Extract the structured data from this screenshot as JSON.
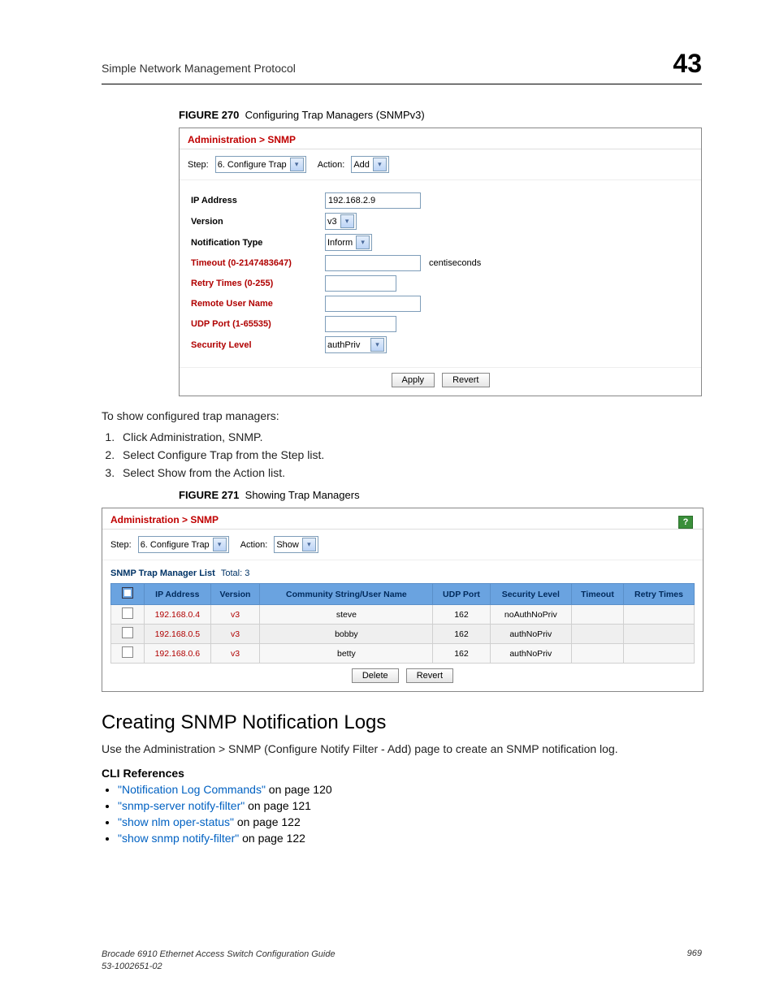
{
  "header": {
    "title": "Simple Network Management Protocol",
    "chapter": "43"
  },
  "figure270": {
    "label": "FIGURE 270",
    "caption": "Configuring Trap Managers (SNMPv3)",
    "breadcrumb": "Administration > SNMP",
    "step_label": "Step:",
    "step_value": "6. Configure Trap",
    "action_label": "Action:",
    "action_value": "Add",
    "rows": {
      "ip_label": "IP Address",
      "ip_value": "192.168.2.9",
      "version_label": "Version",
      "version_value": "v3",
      "notif_label": "Notification Type",
      "notif_value": "Inform",
      "timeout_label": "Timeout (0-2147483647)",
      "timeout_suffix": "centiseconds",
      "retry_label": "Retry Times (0-255)",
      "remote_label": "Remote User Name",
      "udp_label": "UDP Port (1-65535)",
      "sec_label": "Security Level",
      "sec_value": "authPriv"
    },
    "apply": "Apply",
    "revert": "Revert"
  },
  "midtext": {
    "intro": "To show configured trap managers:",
    "steps": [
      "Click Administration, SNMP.",
      "Select Configure Trap from the Step list.",
      "Select Show from the Action list."
    ]
  },
  "figure271": {
    "label": "FIGURE 271",
    "caption": "Showing Trap Managers",
    "breadcrumb": "Administration > SNMP",
    "step_label": "Step:",
    "step_value": "6. Configure Trap",
    "action_label": "Action:",
    "action_value": "Show",
    "list_title": "SNMP Trap Manager List",
    "total_label": "Total:",
    "total_value": "3",
    "columns": [
      "IP Address",
      "Version",
      "Community String/User Name",
      "UDP Port",
      "Security Level",
      "Timeout",
      "Retry Times"
    ],
    "rows": [
      {
        "ip": "192.168.0.4",
        "ver": "v3",
        "user": "steve",
        "port": "162",
        "sec": "noAuthNoPriv",
        "timeout": "",
        "retry": ""
      },
      {
        "ip": "192.168.0.5",
        "ver": "v3",
        "user": "bobby",
        "port": "162",
        "sec": "authNoPriv",
        "timeout": "",
        "retry": ""
      },
      {
        "ip": "192.168.0.6",
        "ver": "v3",
        "user": "betty",
        "port": "162",
        "sec": "authNoPriv",
        "timeout": "",
        "retry": ""
      }
    ],
    "delete": "Delete",
    "revert": "Revert"
  },
  "section": {
    "title": "Creating SNMP Notification Logs",
    "para": "Use the Administration > SNMP (Configure Notify Filter - Add) page to create an SNMP notification log.",
    "cli_title": "CLI References",
    "refs": [
      {
        "link": "\"Notification Log Commands\"",
        "rest": " on page 120"
      },
      {
        "link": "\"snmp-server notify-filter\"",
        "rest": " on page 121"
      },
      {
        "link": "\"show nlm oper-status\"",
        "rest": " on page 122"
      },
      {
        "link": "\"show snmp notify-filter\"",
        "rest": " on page 122"
      }
    ]
  },
  "footer": {
    "line1": "Brocade 6910 Ethernet Access Switch Configuration Guide",
    "line2": "53-1002651-02",
    "page": "969"
  }
}
